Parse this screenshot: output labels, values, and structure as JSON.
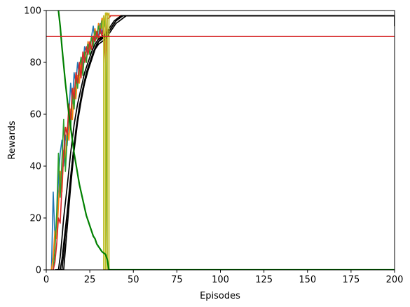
{
  "chart_data": {
    "type": "line",
    "title": "",
    "xlabel": "Episodes",
    "ylabel": "Rewards",
    "xlim": [
      0,
      200
    ],
    "ylim": [
      0,
      100
    ],
    "xticks": [
      0,
      25,
      50,
      75,
      100,
      125,
      150,
      175,
      200
    ],
    "yticks": [
      0,
      20,
      40,
      60,
      80,
      100
    ],
    "grid": false,
    "legend": "none",
    "threshold": {
      "y": 90,
      "color": "#d62728"
    },
    "series": [
      {
        "color": "#1f77b4",
        "width": 1.6,
        "points": [
          [
            3,
            0
          ],
          [
            4,
            30
          ],
          [
            5,
            12
          ],
          [
            6,
            18
          ],
          [
            7,
            35
          ],
          [
            8,
            45
          ],
          [
            9,
            50
          ],
          [
            10,
            40
          ],
          [
            11,
            52
          ],
          [
            12,
            48
          ],
          [
            13,
            60
          ],
          [
            14,
            72
          ],
          [
            15,
            64
          ],
          [
            16,
            76
          ],
          [
            17,
            72
          ],
          [
            18,
            80
          ],
          [
            19,
            75
          ],
          [
            20,
            82
          ],
          [
            21,
            78
          ],
          [
            22,
            86
          ],
          [
            23,
            84
          ],
          [
            24,
            88
          ],
          [
            25,
            86
          ],
          [
            26,
            90
          ],
          [
            27,
            94
          ],
          [
            28,
            88
          ],
          [
            29,
            92
          ],
          [
            30,
            90
          ],
          [
            31,
            95
          ],
          [
            32,
            91
          ],
          [
            33,
            94
          ],
          [
            34,
            96
          ],
          [
            35,
            0
          ],
          [
            200,
            0
          ]
        ]
      },
      {
        "color": "#ff7f0e",
        "width": 1.8,
        "points": [
          [
            3,
            0
          ],
          [
            4,
            5
          ],
          [
            5,
            15
          ],
          [
            6,
            12
          ],
          [
            7,
            25
          ],
          [
            8,
            38
          ],
          [
            9,
            30
          ],
          [
            10,
            46
          ],
          [
            11,
            42
          ],
          [
            12,
            55
          ],
          [
            13,
            50
          ],
          [
            14,
            62
          ],
          [
            15,
            58
          ],
          [
            16,
            70
          ],
          [
            17,
            66
          ],
          [
            18,
            75
          ],
          [
            19,
            72
          ],
          [
            20,
            80
          ],
          [
            21,
            76
          ],
          [
            22,
            84
          ],
          [
            23,
            80
          ],
          [
            24,
            88
          ],
          [
            25,
            85
          ],
          [
            26,
            90
          ],
          [
            27,
            88
          ],
          [
            28,
            93
          ],
          [
            29,
            89
          ],
          [
            30,
            95
          ],
          [
            31,
            92
          ],
          [
            32,
            97
          ],
          [
            33,
            93
          ],
          [
            34,
            98
          ],
          [
            35,
            99
          ],
          [
            36,
            98
          ],
          [
            37,
            98
          ],
          [
            200,
            98
          ]
        ]
      },
      {
        "color": "#2ca02c",
        "width": 1.6,
        "points": [
          [
            4,
            0
          ],
          [
            5,
            8
          ],
          [
            6,
            22
          ],
          [
            7,
            45
          ],
          [
            8,
            28
          ],
          [
            9,
            42
          ],
          [
            10,
            58
          ],
          [
            11,
            38
          ],
          [
            12,
            50
          ],
          [
            13,
            60
          ],
          [
            14,
            54
          ],
          [
            15,
            68
          ],
          [
            16,
            62
          ],
          [
            17,
            74
          ],
          [
            18,
            70
          ],
          [
            19,
            78
          ],
          [
            20,
            82
          ],
          [
            21,
            75
          ],
          [
            22,
            84
          ],
          [
            23,
            80
          ],
          [
            24,
            87
          ],
          [
            25,
            83
          ],
          [
            26,
            90
          ],
          [
            27,
            86
          ],
          [
            28,
            92
          ],
          [
            29,
            89
          ],
          [
            30,
            94
          ],
          [
            31,
            91
          ],
          [
            32,
            96
          ],
          [
            33,
            93
          ],
          [
            34,
            97
          ],
          [
            35,
            0
          ],
          [
            200,
            0
          ]
        ]
      },
      {
        "color": "#d62728",
        "width": 1.6,
        "points": [
          [
            4,
            0
          ],
          [
            5,
            3
          ],
          [
            6,
            10
          ],
          [
            7,
            20
          ],
          [
            8,
            18
          ],
          [
            9,
            32
          ],
          [
            10,
            45
          ],
          [
            11,
            55
          ],
          [
            12,
            52
          ],
          [
            13,
            64
          ],
          [
            14,
            58
          ],
          [
            15,
            70
          ],
          [
            16,
            66
          ],
          [
            17,
            76
          ],
          [
            18,
            72
          ],
          [
            19,
            80
          ],
          [
            20,
            74
          ],
          [
            21,
            84
          ],
          [
            22,
            80
          ],
          [
            23,
            86
          ],
          [
            24,
            83
          ],
          [
            25,
            88
          ],
          [
            26,
            85
          ],
          [
            27,
            90
          ],
          [
            28,
            88
          ],
          [
            29,
            92
          ],
          [
            30,
            89
          ],
          [
            31,
            93
          ],
          [
            32,
            90
          ],
          [
            33,
            94
          ],
          [
            34,
            80
          ],
          [
            35,
            97
          ],
          [
            36,
            97
          ],
          [
            37,
            98
          ],
          [
            200,
            98
          ]
        ]
      },
      {
        "color": "#000000",
        "width": 1.7,
        "points": [
          [
            5,
            0
          ],
          [
            7,
            0
          ],
          [
            8,
            5
          ],
          [
            9,
            12
          ],
          [
            10,
            20
          ],
          [
            12,
            32
          ],
          [
            14,
            45
          ],
          [
            16,
            56
          ],
          [
            18,
            64
          ],
          [
            20,
            70
          ],
          [
            22,
            76
          ],
          [
            24,
            80
          ],
          [
            26,
            84
          ],
          [
            28,
            87
          ],
          [
            30,
            89
          ],
          [
            32,
            90
          ],
          [
            34,
            91
          ],
          [
            36,
            92
          ],
          [
            38,
            94
          ],
          [
            40,
            96
          ],
          [
            42,
            97
          ],
          [
            44,
            98
          ],
          [
            45,
            98
          ],
          [
            200,
            98
          ],
          [
            200,
            94
          ]
        ]
      },
      {
        "color": "#000000",
        "width": 1.7,
        "points": [
          [
            6,
            0
          ],
          [
            8,
            0
          ],
          [
            9,
            4
          ],
          [
            10,
            10
          ],
          [
            12,
            22
          ],
          [
            14,
            36
          ],
          [
            16,
            48
          ],
          [
            18,
            58
          ],
          [
            20,
            66
          ],
          [
            22,
            72
          ],
          [
            24,
            77
          ],
          [
            26,
            81
          ],
          [
            28,
            85
          ],
          [
            30,
            88
          ],
          [
            32,
            89
          ],
          [
            34,
            90
          ],
          [
            36,
            92
          ],
          [
            38,
            94
          ],
          [
            40,
            96
          ],
          [
            42,
            97
          ],
          [
            44,
            98
          ],
          [
            200,
            98
          ]
        ]
      },
      {
        "color": "#000000",
        "width": 1.7,
        "points": [
          [
            7,
            0
          ],
          [
            9,
            0
          ],
          [
            10,
            6
          ],
          [
            11,
            14
          ],
          [
            13,
            28
          ],
          [
            15,
            42
          ],
          [
            17,
            54
          ],
          [
            19,
            63
          ],
          [
            21,
            70
          ],
          [
            23,
            76
          ],
          [
            25,
            80
          ],
          [
            27,
            84
          ],
          [
            29,
            87
          ],
          [
            31,
            89
          ],
          [
            33,
            90
          ],
          [
            35,
            92
          ],
          [
            37,
            94
          ],
          [
            39,
            96
          ],
          [
            41,
            97
          ],
          [
            43,
            98
          ],
          [
            200,
            98
          ]
        ]
      },
      {
        "color": "#000000",
        "width": 1.7,
        "points": [
          [
            8,
            0
          ],
          [
            10,
            0
          ],
          [
            11,
            8
          ],
          [
            12,
            16
          ],
          [
            14,
            32
          ],
          [
            16,
            46
          ],
          [
            18,
            57
          ],
          [
            20,
            65
          ],
          [
            22,
            72
          ],
          [
            24,
            77
          ],
          [
            26,
            81
          ],
          [
            28,
            85
          ],
          [
            30,
            87
          ],
          [
            32,
            88
          ],
          [
            34,
            89
          ],
          [
            36,
            91
          ],
          [
            38,
            93
          ],
          [
            40,
            95
          ],
          [
            42,
            96
          ],
          [
            44,
            97
          ],
          [
            46,
            98
          ],
          [
            200,
            98
          ]
        ]
      },
      {
        "color": "#bcbd22",
        "width": 1.8,
        "points": [
          [
            32,
            93
          ],
          [
            33,
            98
          ],
          [
            33,
            0
          ],
          [
            34,
            0
          ],
          [
            34,
            99
          ],
          [
            35,
            99
          ],
          [
            35,
            0
          ],
          [
            36,
            0
          ],
          [
            36,
            99
          ],
          [
            36,
            0
          ],
          [
            37,
            0
          ],
          [
            200,
            0
          ]
        ]
      },
      {
        "color": "#008000",
        "width": 2.2,
        "points": [
          [
            7,
            100
          ],
          [
            8,
            94
          ],
          [
            9,
            86
          ],
          [
            10,
            79
          ],
          [
            11,
            72
          ],
          [
            12,
            66
          ],
          [
            13,
            60
          ],
          [
            14,
            55
          ],
          [
            15,
            50
          ],
          [
            16,
            45
          ],
          [
            17,
            41
          ],
          [
            18,
            37
          ],
          [
            19,
            33
          ],
          [
            20,
            30
          ],
          [
            21,
            27
          ],
          [
            22,
            24
          ],
          [
            23,
            21
          ],
          [
            24,
            19
          ],
          [
            25,
            17
          ],
          [
            26,
            15
          ],
          [
            27,
            13
          ],
          [
            28,
            12
          ],
          [
            29,
            10
          ],
          [
            30,
            9
          ],
          [
            31,
            8
          ],
          [
            32,
            7
          ],
          [
            33,
            6.5
          ],
          [
            34,
            6
          ],
          [
            35,
            4
          ],
          [
            36,
            0
          ],
          [
            37,
            0
          ],
          [
            200,
            0
          ]
        ]
      }
    ]
  }
}
